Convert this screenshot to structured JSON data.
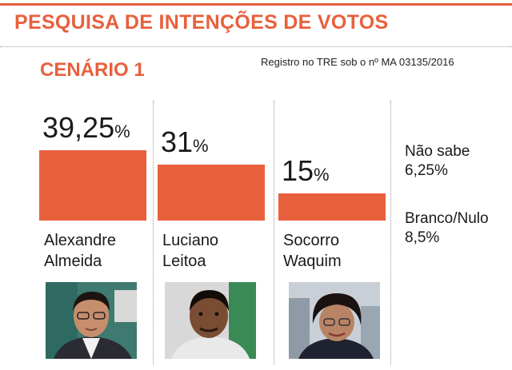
{
  "header": {
    "title": "PESQUISA DE INTENÇÕES DE VOTOS",
    "scenario": "CENÁRIO 1",
    "registro": "Registro no TRE sob o nº MA 03135/2016"
  },
  "chart_data": {
    "type": "bar",
    "categories": [
      "Alexandre Almeida",
      "Luciano Leitoa",
      "Socorro Waquim"
    ],
    "values": [
      39.25,
      31,
      15
    ],
    "value_labels": [
      "39,25",
      "31",
      "15"
    ],
    "unit": "%",
    "name_lines": [
      [
        "Alexandre",
        "Almeida"
      ],
      [
        "Luciano",
        "Leitoa"
      ],
      [
        "Socorro",
        "Waquim"
      ]
    ],
    "ylim": [
      0,
      39.25
    ],
    "bar_color": "#e9603d",
    "others": [
      {
        "label": "Não sabe",
        "value": "6,25%"
      },
      {
        "label": "Branco/Nulo",
        "value": "8,5%"
      }
    ]
  }
}
